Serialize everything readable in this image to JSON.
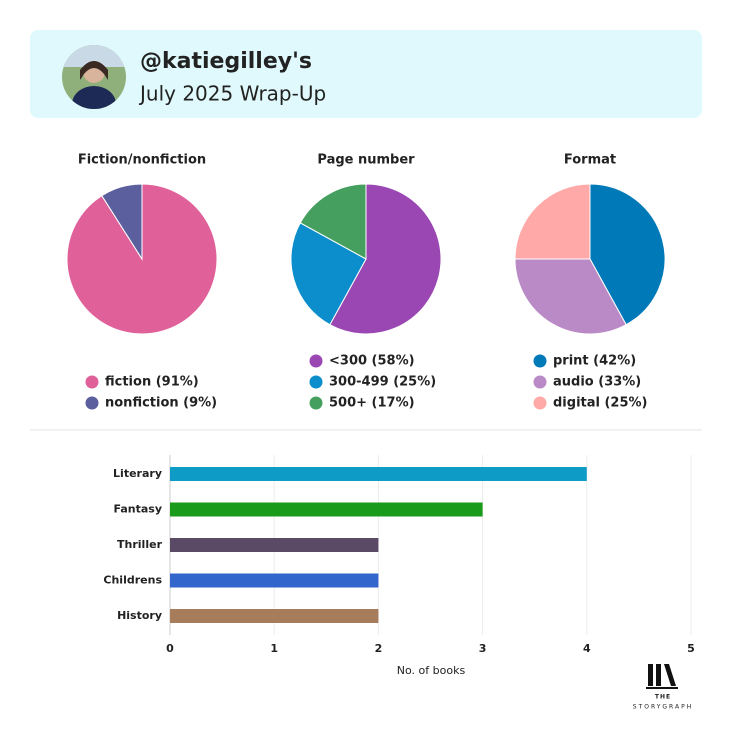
{
  "header": {
    "title": "@katiegilley's",
    "subtitle": "July 2025 Wrap-Up"
  },
  "chart_data": [
    {
      "type": "pie",
      "title": "Fiction/nonfiction",
      "categories": [
        "fiction (91%)",
        "nonfiction (9%)"
      ],
      "values": [
        91,
        9
      ],
      "colors": [
        "#e0609a",
        "#5b5f9e"
      ]
    },
    {
      "type": "pie",
      "title": "Page number",
      "categories": [
        "<300 (58%)",
        "300-499 (25%)",
        "500+ (17%)"
      ],
      "values": [
        58,
        25,
        17
      ],
      "colors": [
        "#9b47b3",
        "#0b8ecb",
        "#45a05f"
      ]
    },
    {
      "type": "pie",
      "title": "Format",
      "categories": [
        "print (42%)",
        "audio (33%)",
        "digital (25%)"
      ],
      "values": [
        42,
        33,
        25
      ],
      "colors": [
        "#0079b8",
        "#b98ac6",
        "#ffaaa9"
      ]
    },
    {
      "type": "hbar",
      "categories": [
        "Literary",
        "Fantasy",
        "Thriller",
        "Childrens",
        "History"
      ],
      "values": [
        4,
        3,
        2,
        2,
        2
      ],
      "colors": [
        "#0e9bc6",
        "#1a9a1a",
        "#5b4a66",
        "#3366cc",
        "#a67c5a"
      ],
      "xlim": [
        0,
        5
      ],
      "xticks": [
        0,
        1,
        2,
        3,
        4,
        5
      ],
      "xlabel": "No. of books",
      "grid": true
    }
  ],
  "logo": {
    "line1": "THE",
    "line2": "STORYGRAPH"
  }
}
